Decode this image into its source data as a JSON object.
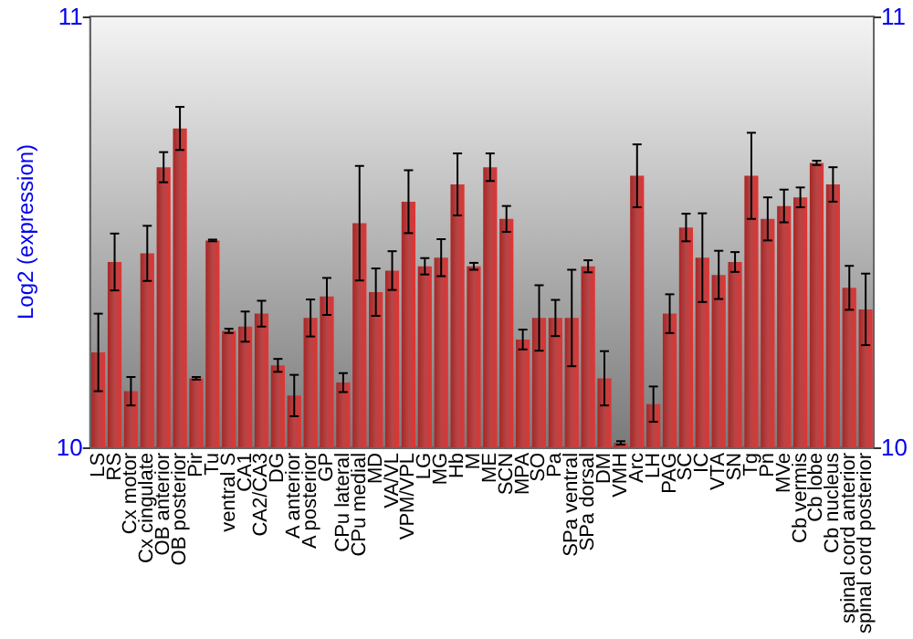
{
  "chart_data": {
    "type": "bar",
    "ylabel": "Log2 (expression)",
    "categories": [
      "LS",
      "RS",
      "Cx motor",
      "Cx cingulate",
      "OB anterior",
      "OB posterior",
      "Pir",
      "Tu",
      "ventral S",
      "CA1",
      "CA2/CA3",
      "DG",
      "A anterior",
      "A posterior",
      "GP",
      "CPu lateral",
      "CPu medial",
      "MD",
      "VA/VL",
      "VPM/VPL",
      "LG",
      "MG",
      "Hb",
      "M",
      "ME",
      "SCN",
      "MPA",
      "SO",
      "Pa",
      "SPa ventral",
      "SPa dorsal",
      "DM",
      "VMH",
      "Arc",
      "LH",
      "PAG",
      "SC",
      "IC",
      "VTA",
      "SN",
      "Tg",
      "Pn",
      "MVe",
      "Cb vermis",
      "Cb lobe",
      "Cb nucleus",
      "spinal cord anterior",
      "spinal cord posterior"
    ],
    "values": [
      10.22,
      10.43,
      10.13,
      10.45,
      10.65,
      10.74,
      10.16,
      10.48,
      10.27,
      10.28,
      10.31,
      10.19,
      10.12,
      10.3,
      10.35,
      10.15,
      10.52,
      10.36,
      10.41,
      10.57,
      10.42,
      10.44,
      10.61,
      10.42,
      10.65,
      10.53,
      10.25,
      10.3,
      10.3,
      10.3,
      10.42,
      10.16,
      10.01,
      10.63,
      10.1,
      10.31,
      10.51,
      10.44,
      10.4,
      10.43,
      10.63,
      10.53,
      10.56,
      10.58,
      10.66,
      10.61,
      10.37,
      10.32
    ],
    "errors": [
      0.09,
      0.066,
      0.033,
      0.064,
      0.035,
      0.05,
      0.003,
      0.002,
      0.005,
      0.035,
      0.03,
      0.015,
      0.048,
      0.043,
      0.043,
      0.022,
      0.133,
      0.055,
      0.045,
      0.073,
      0.019,
      0.043,
      0.072,
      0.008,
      0.032,
      0.03,
      0.023,
      0.076,
      0.042,
      0.112,
      0.014,
      0.063,
      0.004,
      0.073,
      0.041,
      0.045,
      0.032,
      0.103,
      0.056,
      0.023,
      0.1,
      0.05,
      0.038,
      0.023,
      0.005,
      0.04,
      0.051,
      0.083
    ],
    "color": "#a82626",
    "ylim": [
      10,
      11
    ],
    "yticks": [
      10,
      11
    ],
    "y2lim": [
      10,
      11
    ],
    "y2ticks": [
      10,
      11
    ]
  }
}
